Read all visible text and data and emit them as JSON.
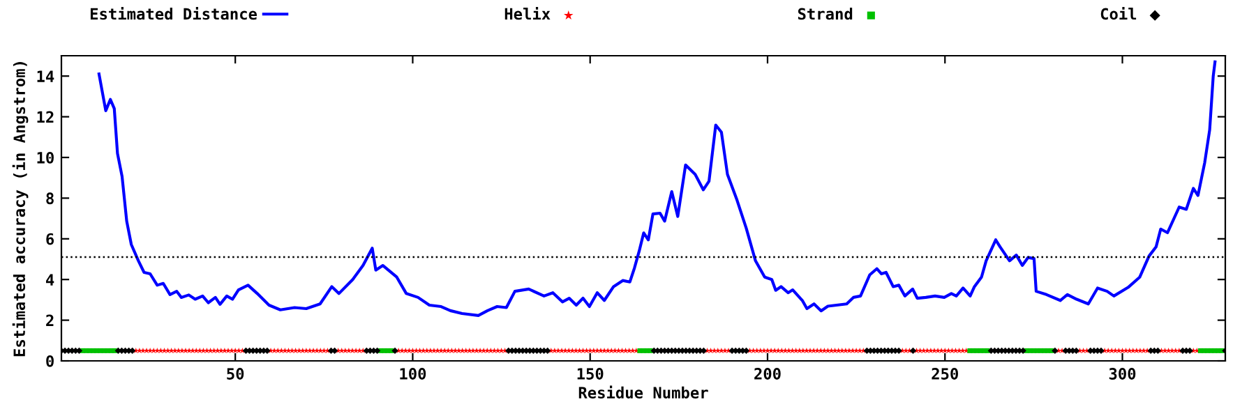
{
  "chart_data": {
    "type": "line",
    "xlabel": "Residue Number",
    "ylabel": "Estimated accuracy (in Angstrom)",
    "xlim": [
      1,
      329
    ],
    "ylim": [
      0,
      15
    ],
    "xticks": [
      50,
      100,
      150,
      200,
      250,
      300
    ],
    "yticks": [
      0,
      2,
      4,
      6,
      8,
      10,
      12,
      14
    ],
    "legend": "top",
    "grid": false,
    "ref_lines": [
      {
        "axis": "y",
        "value": 5.1,
        "color": "#000000",
        "line_style": "dotted"
      }
    ],
    "series": [
      {
        "name": "Estimated Distance",
        "color": "#0000ff",
        "marker": "none",
        "line_style": "solid",
        "x": [
          11.6,
          13.5,
          14.8,
          15.9,
          16.8,
          18.1,
          19.4,
          20.7,
          22.7,
          24.3,
          26,
          28,
          29.7,
          31.6,
          33.5,
          34.8,
          36.9,
          38.7,
          40.8,
          42.4,
          44.4,
          45.7,
          47.6,
          49.2,
          50.9,
          53.6,
          56.2,
          59.5,
          62.7,
          66.7,
          70,
          73.9,
          77.2,
          79.2,
          83.1,
          86,
          88.6,
          89.6,
          91.6,
          95.5,
          98.2,
          101.5,
          104.7,
          108,
          110.6,
          113.9,
          118.5,
          121.1,
          123.8,
          126.4,
          128.8,
          132.7,
          137,
          139.5,
          142.2,
          144.1,
          146.1,
          148,
          149.8,
          152,
          154,
          156.6,
          159.2,
          161.2,
          162.5,
          163.8,
          165.1,
          166.4,
          167.7,
          169.7,
          171,
          173,
          174.7,
          176.9,
          179.6,
          181.9,
          183.5,
          185.4,
          187,
          188.7,
          191.4,
          194,
          196.6,
          199.2,
          201.2,
          202.3,
          203.8,
          205.8,
          207.1,
          209.8,
          211.1,
          213.1,
          215.1,
          217,
          222.3,
          224.2,
          226.2,
          228.8,
          230.8,
          232.1,
          233.4,
          235.4,
          237,
          238.7,
          240.9,
          242.2,
          244.6,
          247.2,
          249.8,
          251.8,
          253.2,
          255.1,
          257.1,
          258.3,
          260.3,
          261.6,
          264.3,
          265.5,
          268.2,
          270.1,
          271.8,
          273.4,
          275.1,
          275.7,
          278.6,
          282.5,
          284.5,
          287.1,
          290.4,
          293,
          295.7,
          297.6,
          301.6,
          304.9,
          307.5,
          309.5,
          310.8,
          312.7,
          316,
          318,
          320,
          321.3,
          323.2,
          324.6,
          325.6,
          326.1
        ],
        "values": [
          14.1,
          12.3,
          12.85,
          12.4,
          10.2,
          9.06,
          6.87,
          5.72,
          4.92,
          4.35,
          4.28,
          3.72,
          3.81,
          3.26,
          3.42,
          3.12,
          3.24,
          3.03,
          3.19,
          2.86,
          3.12,
          2.78,
          3.19,
          3.03,
          3.49,
          3.72,
          3.31,
          2.74,
          2.51,
          2.62,
          2.57,
          2.8,
          3.65,
          3.31,
          4,
          4.69,
          5.54,
          4.46,
          4.69,
          4.12,
          3.31,
          3.12,
          2.74,
          2.67,
          2.47,
          2.33,
          2.23,
          2.47,
          2.67,
          2.62,
          3.42,
          3.53,
          3.19,
          3.35,
          2.9,
          3.08,
          2.74,
          3.08,
          2.67,
          3.35,
          2.97,
          3.65,
          3.95,
          3.88,
          4.57,
          5.38,
          6.29,
          5.95,
          7.22,
          7.26,
          6.87,
          8.32,
          7.1,
          9.63,
          9.17,
          8.41,
          8.83,
          11.59,
          11.24,
          9.17,
          7.9,
          6.52,
          4.92,
          4.12,
          4,
          3.47,
          3.65,
          3.35,
          3.49,
          2.97,
          2.57,
          2.8,
          2.46,
          2.69,
          2.8,
          3.12,
          3.19,
          4.23,
          4.53,
          4.28,
          4.35,
          3.65,
          3.72,
          3.19,
          3.53,
          3.08,
          3.12,
          3.19,
          3.12,
          3.31,
          3.19,
          3.58,
          3.19,
          3.65,
          4.12,
          4.92,
          5.95,
          5.61,
          4.92,
          5.2,
          4.69,
          5.08,
          5.03,
          3.42,
          3.26,
          2.97,
          3.26,
          3.03,
          2.8,
          3.58,
          3.42,
          3.19,
          3.61,
          4.12,
          5.15,
          5.61,
          6.48,
          6.3,
          7.56,
          7.45,
          8.48,
          8.13,
          9.75,
          11.36,
          14,
          14.7
        ]
      },
      {
        "name": "Helix",
        "type": "scatter",
        "color": "#ff0000",
        "marker": "star",
        "x": [
          22,
          23,
          24,
          25,
          26,
          27,
          28,
          29,
          30,
          31,
          32,
          33,
          34,
          35,
          36,
          37,
          38,
          39,
          40,
          41,
          42,
          43,
          44,
          45,
          46,
          47,
          48,
          49,
          50,
          51,
          52,
          60,
          61,
          62,
          63,
          64,
          65,
          66,
          67,
          68,
          69,
          70,
          71,
          72,
          73,
          74,
          75,
          76,
          79,
          80,
          81,
          82,
          83,
          84,
          85,
          86,
          96,
          97,
          98,
          99,
          100,
          101,
          102,
          103,
          104,
          105,
          106,
          107,
          108,
          109,
          110,
          111,
          112,
          113,
          114,
          115,
          116,
          117,
          118,
          119,
          120,
          121,
          122,
          123,
          124,
          125,
          126,
          139,
          140,
          141,
          142,
          143,
          144,
          145,
          146,
          147,
          148,
          149,
          150,
          151,
          152,
          153,
          154,
          155,
          156,
          157,
          158,
          159,
          160,
          161,
          162,
          163,
          183,
          184,
          185,
          186,
          187,
          188,
          189,
          195,
          196,
          197,
          198,
          199,
          200,
          201,
          202,
          203,
          204,
          205,
          206,
          207,
          208,
          209,
          210,
          211,
          212,
          213,
          214,
          215,
          216,
          217,
          218,
          219,
          220,
          221,
          222,
          223,
          224,
          225,
          226,
          227,
          238,
          239,
          240,
          242,
          243,
          244,
          245,
          246,
          247,
          248,
          249,
          250,
          251,
          252,
          253,
          254,
          255,
          256,
          282,
          283,
          288,
          289,
          290,
          295,
          296,
          297,
          298,
          299,
          300,
          301,
          302,
          303,
          304,
          305,
          306,
          307,
          311,
          312,
          313,
          314,
          315,
          316,
          320,
          321
        ],
        "values": [
          0.5,
          0.5,
          0.5,
          0.5,
          0.5,
          0.5,
          0.5,
          0.5,
          0.5,
          0.5,
          0.5,
          0.5,
          0.5,
          0.5,
          0.5,
          0.5,
          0.5,
          0.5,
          0.5,
          0.5,
          0.5,
          0.5,
          0.5,
          0.5,
          0.5,
          0.5,
          0.5,
          0.5,
          0.5,
          0.5,
          0.5,
          0.5,
          0.5,
          0.5,
          0.5,
          0.5,
          0.5,
          0.5,
          0.5,
          0.5,
          0.5,
          0.5,
          0.5,
          0.5,
          0.5,
          0.5,
          0.5,
          0.5,
          0.5,
          0.5,
          0.5,
          0.5,
          0.5,
          0.5,
          0.5,
          0.5,
          0.5,
          0.5,
          0.5,
          0.5,
          0.5,
          0.5,
          0.5,
          0.5,
          0.5,
          0.5,
          0.5,
          0.5,
          0.5,
          0.5,
          0.5,
          0.5,
          0.5,
          0.5,
          0.5,
          0.5,
          0.5,
          0.5,
          0.5,
          0.5,
          0.5,
          0.5,
          0.5,
          0.5,
          0.5,
          0.5,
          0.5,
          0.5,
          0.5,
          0.5,
          0.5,
          0.5,
          0.5,
          0.5,
          0.5,
          0.5,
          0.5,
          0.5,
          0.5,
          0.5,
          0.5,
          0.5,
          0.5,
          0.5,
          0.5,
          0.5,
          0.5,
          0.5,
          0.5,
          0.5,
          0.5,
          0.5,
          0.5,
          0.5,
          0.5,
          0.5,
          0.5,
          0.5,
          0.5,
          0.5,
          0.5,
          0.5,
          0.5,
          0.5,
          0.5,
          0.5,
          0.5,
          0.5,
          0.5,
          0.5,
          0.5,
          0.5,
          0.5,
          0.5,
          0.5,
          0.5,
          0.5,
          0.5,
          0.5,
          0.5,
          0.5,
          0.5,
          0.5,
          0.5,
          0.5,
          0.5,
          0.5,
          0.5,
          0.5,
          0.5,
          0.5,
          0.5,
          0.5,
          0.5,
          0.5,
          0.5,
          0.5,
          0.5,
          0.5,
          0.5,
          0.5,
          0.5,
          0.5,
          0.5,
          0.5,
          0.5,
          0.5,
          0.5,
          0.5,
          0.5,
          0.5,
          0.5,
          0.5,
          0.5,
          0.5,
          0.5,
          0.5,
          0.5,
          0.5,
          0.5,
          0.5,
          0.5,
          0.5,
          0.5,
          0.5,
          0.5,
          0.5,
          0.5,
          0.5,
          0.5,
          0.5,
          0.5,
          0.5,
          0.5,
          0.5,
          0.5
        ]
      },
      {
        "name": "Strand",
        "type": "scatter",
        "color": "#00c000",
        "marker": "square",
        "x": [
          7,
          8,
          9,
          10,
          11,
          12,
          13,
          14,
          15,
          16,
          91,
          92,
          93,
          94,
          164,
          165,
          166,
          167,
          257,
          258,
          259,
          260,
          261,
          262,
          273,
          274,
          275,
          276,
          277,
          278,
          279,
          280,
          322,
          323,
          324,
          325,
          326,
          327,
          328
        ],
        "values": [
          0.5,
          0.5,
          0.5,
          0.5,
          0.5,
          0.5,
          0.5,
          0.5,
          0.5,
          0.5,
          0.5,
          0.5,
          0.5,
          0.5,
          0.5,
          0.5,
          0.5,
          0.5,
          0.5,
          0.5,
          0.5,
          0.5,
          0.5,
          0.5,
          0.5,
          0.5,
          0.5,
          0.5,
          0.5,
          0.5,
          0.5,
          0.5,
          0.5,
          0.5,
          0.5,
          0.5,
          0.5,
          0.5,
          0.5
        ]
      },
      {
        "name": "Coil",
        "type": "scatter",
        "color": "#000000",
        "marker": "diamond",
        "x": [
          1,
          2,
          3,
          4,
          5,
          6,
          17,
          18,
          19,
          20,
          21,
          53,
          54,
          55,
          56,
          57,
          58,
          59,
          77,
          78,
          87,
          88,
          89,
          90,
          95,
          127,
          128,
          129,
          130,
          131,
          132,
          133,
          134,
          135,
          136,
          137,
          138,
          168,
          169,
          170,
          171,
          172,
          173,
          174,
          175,
          176,
          177,
          178,
          179,
          180,
          181,
          182,
          190,
          191,
          192,
          193,
          194,
          228,
          229,
          230,
          231,
          232,
          233,
          234,
          235,
          236,
          237,
          241,
          263,
          264,
          265,
          266,
          267,
          268,
          269,
          270,
          271,
          272,
          281,
          284,
          285,
          286,
          287,
          291,
          292,
          293,
          294,
          308,
          309,
          310,
          317,
          318,
          319,
          329
        ],
        "values": [
          0.5,
          0.5,
          0.5,
          0.5,
          0.5,
          0.5,
          0.5,
          0.5,
          0.5,
          0.5,
          0.5,
          0.5,
          0.5,
          0.5,
          0.5,
          0.5,
          0.5,
          0.5,
          0.5,
          0.5,
          0.5,
          0.5,
          0.5,
          0.5,
          0.5,
          0.5,
          0.5,
          0.5,
          0.5,
          0.5,
          0.5,
          0.5,
          0.5,
          0.5,
          0.5,
          0.5,
          0.5,
          0.5,
          0.5,
          0.5,
          0.5,
          0.5,
          0.5,
          0.5,
          0.5,
          0.5,
          0.5,
          0.5,
          0.5,
          0.5,
          0.5,
          0.5,
          0.5,
          0.5,
          0.5,
          0.5,
          0.5,
          0.5,
          0.5,
          0.5,
          0.5,
          0.5,
          0.5,
          0.5,
          0.5,
          0.5,
          0.5,
          0.5,
          0.5,
          0.5,
          0.5,
          0.5,
          0.5,
          0.5,
          0.5,
          0.5,
          0.5,
          0.5,
          0.5,
          0.5,
          0.5,
          0.5,
          0.5,
          0.5,
          0.5,
          0.5,
          0.5,
          0.5,
          0.5,
          0.5,
          0.5,
          0.5,
          0.5,
          0.5
        ]
      }
    ]
  }
}
